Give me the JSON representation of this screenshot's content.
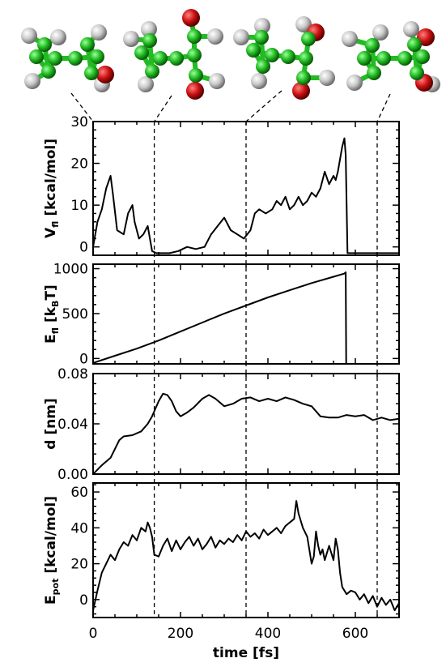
{
  "chart_data": [
    {
      "type": "line",
      "ylabel_main": "V",
      "ylabel_sub": "fl",
      "ylabel_unit": "[kcal/mol]",
      "ylim": [
        -2,
        30
      ],
      "yticks": [
        0,
        10,
        20,
        30
      ],
      "ytick_labels": [
        "0",
        "10",
        "20",
        "30"
      ],
      "x": [
        0,
        10,
        20,
        30,
        40,
        45,
        55,
        70,
        80,
        90,
        95,
        105,
        115,
        125,
        135,
        145,
        155,
        175,
        195,
        215,
        235,
        255,
        270,
        285,
        300,
        315,
        330,
        345,
        360,
        370,
        380,
        395,
        410,
        420,
        430,
        440,
        450,
        460,
        470,
        480,
        490,
        500,
        510,
        520,
        530,
        540,
        550,
        555,
        560,
        570,
        575,
        578,
        582,
        590,
        600,
        650,
        700
      ],
      "y": [
        0,
        6,
        9,
        14,
        17,
        13,
        4,
        3,
        8,
        10,
        6,
        2,
        3,
        5,
        -1,
        -1.5,
        -1.5,
        -1.5,
        -1,
        0,
        -0.5,
        0,
        3,
        5,
        7,
        4,
        3,
        2,
        4,
        8,
        9,
        8,
        9,
        11,
        10,
        12,
        9,
        10,
        12,
        10,
        11,
        13,
        12,
        14,
        18,
        15,
        17,
        16,
        18,
        24,
        26,
        22,
        -1.5,
        -1.5,
        -1.5,
        -1.5,
        -1.5
      ]
    },
    {
      "type": "line",
      "ylabel_main": "E",
      "ylabel_sub": "fl",
      "ylabel_unit_prefix": "[k",
      "ylabel_unit_sub": "B",
      "ylabel_unit_suffix": "T]",
      "ylim": [
        -60,
        1050
      ],
      "yticks": [
        0,
        500,
        1000
      ],
      "ytick_labels": [
        "0",
        "500",
        "1000"
      ],
      "x": [
        0,
        50,
        100,
        150,
        200,
        250,
        300,
        350,
        400,
        450,
        500,
        550,
        575,
        578,
        579,
        600,
        700
      ],
      "y": [
        -50,
        30,
        110,
        200,
        300,
        400,
        500,
        590,
        680,
        760,
        840,
        910,
        945,
        960,
        -60,
        -60,
        -60
      ]
    },
    {
      "type": "line",
      "ylabel_main": "d",
      "ylabel_unit": "[nm]",
      "ylim": [
        0,
        0.08
      ],
      "yticks": [
        0,
        0.04,
        0.08
      ],
      "ytick_labels": [
        "0.00",
        "0.04",
        "0.08"
      ],
      "x": [
        0,
        20,
        40,
        60,
        70,
        90,
        110,
        125,
        135,
        150,
        160,
        170,
        180,
        190,
        200,
        215,
        230,
        250,
        265,
        280,
        300,
        320,
        340,
        360,
        380,
        400,
        420,
        440,
        460,
        480,
        500,
        520,
        540,
        560,
        580,
        600,
        620,
        640,
        660,
        680,
        700
      ],
      "y": [
        0,
        0.007,
        0.013,
        0.027,
        0.03,
        0.031,
        0.034,
        0.04,
        0.046,
        0.058,
        0.064,
        0.063,
        0.058,
        0.05,
        0.046,
        0.049,
        0.053,
        0.06,
        0.063,
        0.06,
        0.054,
        0.056,
        0.06,
        0.061,
        0.058,
        0.06,
        0.058,
        0.061,
        0.059,
        0.056,
        0.054,
        0.046,
        0.045,
        0.045,
        0.047,
        0.046,
        0.047,
        0.043,
        0.045,
        0.043,
        0.044
      ]
    },
    {
      "type": "line",
      "ylabel_main": "E",
      "ylabel_sub": "pot",
      "ylabel_unit": "[kcal/mol]",
      "ylim": [
        -10,
        65
      ],
      "yticks": [
        0,
        20,
        40,
        60
      ],
      "ytick_labels": [
        "0",
        "20",
        "40",
        "60"
      ],
      "xlabel": "time [fs]",
      "xlim": [
        0,
        700
      ],
      "xticks": [
        0,
        200,
        400,
        600
      ],
      "xtick_labels": [
        "0",
        "200",
        "400",
        "600"
      ],
      "x": [
        0,
        10,
        20,
        30,
        40,
        50,
        60,
        70,
        80,
        90,
        100,
        110,
        120,
        125,
        130,
        135,
        140,
        150,
        160,
        170,
        180,
        190,
        200,
        210,
        220,
        230,
        240,
        250,
        260,
        270,
        280,
        290,
        300,
        310,
        320,
        330,
        340,
        350,
        360,
        370,
        380,
        390,
        400,
        410,
        420,
        430,
        440,
        450,
        460,
        465,
        470,
        475,
        480,
        490,
        500,
        505,
        510,
        515,
        520,
        525,
        530,
        540,
        550,
        555,
        560,
        565,
        570,
        580,
        590,
        600,
        610,
        620,
        630,
        640,
        650,
        660,
        670,
        680,
        690,
        700
      ],
      "y": [
        -6,
        5,
        15,
        20,
        25,
        22,
        28,
        32,
        30,
        36,
        33,
        40,
        38,
        43,
        40,
        35,
        25,
        24,
        30,
        34,
        27,
        33,
        28,
        32,
        35,
        30,
        34,
        28,
        31,
        35,
        29,
        33,
        31,
        34,
        32,
        36,
        33,
        38,
        35,
        37,
        34,
        39,
        36,
        38,
        40,
        37,
        41,
        43,
        45,
        55,
        48,
        44,
        40,
        35,
        20,
        24,
        38,
        30,
        25,
        28,
        22,
        30,
        22,
        34,
        28,
        15,
        7,
        3,
        5,
        4,
        0,
        3,
        -2,
        2,
        -4,
        1,
        -3,
        0,
        -6,
        -2
      ]
    }
  ],
  "event_lines_x": [
    140,
    350,
    650
  ],
  "molecules": [
    {
      "name": "molecule-1"
    },
    {
      "name": "molecule-2"
    },
    {
      "name": "molecule-3"
    },
    {
      "name": "molecule-4"
    }
  ],
  "colors": {
    "carbon": "#22bb22",
    "hydrogen": "#c8c8c8",
    "oxygen": "#cc1111",
    "line": "#000000"
  }
}
